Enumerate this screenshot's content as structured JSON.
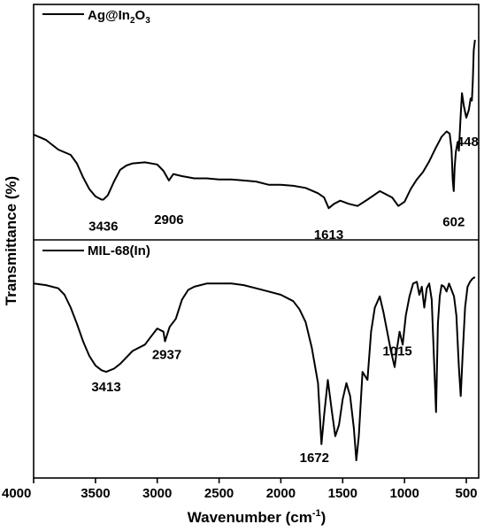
{
  "chart_data": {
    "type": "line",
    "xlabel": "Wavenumber (cm",
    "xlabel_sup": "-1",
    "xlabel_close": ")",
    "ylabel": "Transmittance (%)",
    "xlim": [
      4000,
      400
    ],
    "x_inverted": true,
    "xticks": [
      4000,
      3500,
      3000,
      2500,
      2000,
      1500,
      1000,
      500
    ],
    "yticks_shown": false,
    "grid": false,
    "legend_placement": "top-left",
    "panels": [
      {
        "position": "top",
        "legend": {
          "main": "Ag@In",
          "sub1": "2",
          "mid": "O",
          "sub2": "3"
        },
        "series": {
          "color": "#000000",
          "points": [
            [
              4000,
              61
            ],
            [
              3900,
              56
            ],
            [
              3800,
              47
            ],
            [
              3700,
              42
            ],
            [
              3650,
              34
            ],
            [
              3600,
              21
            ],
            [
              3550,
              10
            ],
            [
              3500,
              3
            ],
            [
              3450,
              0
            ],
            [
              3436,
              0
            ],
            [
              3400,
              4
            ],
            [
              3350,
              17
            ],
            [
              3300,
              28
            ],
            [
              3250,
              32
            ],
            [
              3200,
              34
            ],
            [
              3100,
              35
            ],
            [
              3000,
              33
            ],
            [
              2950,
              27
            ],
            [
              2906,
              18
            ],
            [
              2870,
              24
            ],
            [
              2800,
              22
            ],
            [
              2700,
              20
            ],
            [
              2600,
              20
            ],
            [
              2500,
              19
            ],
            [
              2400,
              19
            ],
            [
              2300,
              18
            ],
            [
              2200,
              17
            ],
            [
              2100,
              14
            ],
            [
              2000,
              14
            ],
            [
              1900,
              13
            ],
            [
              1800,
              11
            ],
            [
              1700,
              6
            ],
            [
              1650,
              2
            ],
            [
              1613,
              -8
            ],
            [
              1570,
              -4
            ],
            [
              1520,
              -1
            ],
            [
              1450,
              -4
            ],
            [
              1380,
              -6
            ],
            [
              1300,
              0
            ],
            [
              1200,
              8
            ],
            [
              1100,
              2
            ],
            [
              1050,
              -6
            ],
            [
              1000,
              -2
            ],
            [
              950,
              10
            ],
            [
              900,
              19
            ],
            [
              850,
              26
            ],
            [
              800,
              36
            ],
            [
              750,
              48
            ],
            [
              700,
              59
            ],
            [
              660,
              64
            ],
            [
              635,
              62
            ],
            [
              620,
              47
            ],
            [
              610,
              18
            ],
            [
              602,
              8
            ],
            [
              595,
              30
            ],
            [
              585,
              45
            ],
            [
              570,
              54
            ],
            [
              560,
              46
            ],
            [
              545,
              80
            ],
            [
              535,
              100
            ],
            [
              520,
              88
            ],
            [
              500,
              77
            ],
            [
              480,
              84
            ],
            [
              465,
              95
            ],
            [
              455,
              93
            ],
            [
              448,
              110
            ],
            [
              440,
              140
            ],
            [
              430,
              150
            ]
          ]
        },
        "annotations": [
          {
            "text": "3436",
            "x": 3436,
            "anchor_y": -14
          },
          {
            "text": "2906",
            "x": 2906,
            "anchor_y": -8
          },
          {
            "text": "1613",
            "x": 1613,
            "anchor_y": -22
          },
          {
            "text": "602",
            "x": 602,
            "anchor_y": -10
          },
          {
            "text": "448",
            "x": 448,
            "anchor_y": 52
          }
        ]
      },
      {
        "position": "bottom",
        "legend": {
          "main": "MIL-68(In)"
        },
        "series": {
          "color": "#000000",
          "points": [
            [
              4000,
              100
            ],
            [
              3900,
              99
            ],
            [
              3800,
              97
            ],
            [
              3750,
              93
            ],
            [
              3700,
              85
            ],
            [
              3650,
              75
            ],
            [
              3600,
              64
            ],
            [
              3550,
              55
            ],
            [
              3500,
              49
            ],
            [
              3450,
              46
            ],
            [
              3413,
              45
            ],
            [
              3350,
              47
            ],
            [
              3300,
              50
            ],
            [
              3250,
              54
            ],
            [
              3200,
              58
            ],
            [
              3100,
              62
            ],
            [
              3050,
              67
            ],
            [
              3000,
              72
            ],
            [
              2950,
              70
            ],
            [
              2937,
              64
            ],
            [
              2900,
              73
            ],
            [
              2850,
              78
            ],
            [
              2800,
              90
            ],
            [
              2750,
              96
            ],
            [
              2700,
              98
            ],
            [
              2600,
              100
            ],
            [
              2500,
              100
            ],
            [
              2400,
              100
            ],
            [
              2300,
              99
            ],
            [
              2200,
              97
            ],
            [
              2100,
              95
            ],
            [
              2000,
              93
            ],
            [
              1900,
              89
            ],
            [
              1850,
              84
            ],
            [
              1800,
              76
            ],
            [
              1750,
              60
            ],
            [
              1700,
              38
            ],
            [
              1672,
              0
            ],
            [
              1650,
              18
            ],
            [
              1620,
              40
            ],
            [
              1590,
              22
            ],
            [
              1560,
              5
            ],
            [
              1530,
              12
            ],
            [
              1500,
              28
            ],
            [
              1470,
              38
            ],
            [
              1440,
              30
            ],
            [
              1410,
              10
            ],
            [
              1390,
              -10
            ],
            [
              1370,
              5
            ],
            [
              1340,
              45
            ],
            [
              1300,
              40
            ],
            [
              1270,
              70
            ],
            [
              1240,
              85
            ],
            [
              1200,
              92
            ],
            [
              1170,
              82
            ],
            [
              1140,
              70
            ],
            [
              1110,
              58
            ],
            [
              1080,
              48
            ],
            [
              1060,
              60
            ],
            [
              1040,
              70
            ],
            [
              1015,
              62
            ],
            [
              990,
              80
            ],
            [
              960,
              92
            ],
            [
              930,
              100
            ],
            [
              900,
              101
            ],
            [
              880,
              93
            ],
            [
              860,
              98
            ],
            [
              840,
              85
            ],
            [
              820,
              97
            ],
            [
              800,
              100
            ],
            [
              780,
              90
            ],
            [
              760,
              50
            ],
            [
              745,
              20
            ],
            [
              730,
              75
            ],
            [
              715,
              92
            ],
            [
              700,
              99
            ],
            [
              680,
              98
            ],
            [
              660,
              95
            ],
            [
              640,
              100
            ],
            [
              620,
              96
            ],
            [
              600,
              92
            ],
            [
              580,
              80
            ],
            [
              560,
              48
            ],
            [
              545,
              30
            ],
            [
              530,
              55
            ],
            [
              510,
              85
            ],
            [
              490,
              98
            ],
            [
              470,
              101
            ],
            [
              450,
              103
            ],
            [
              430,
              104
            ]
          ]
        },
        "annotations": [
          {
            "text": "3413",
            "x": 3413,
            "anchor_y": 45
          },
          {
            "text": "2937",
            "x": 2937,
            "anchor_y": 64
          },
          {
            "text": "1672",
            "x": 1672,
            "anchor_y": 0
          },
          {
            "text": "1015",
            "x": 1015,
            "anchor_y": 62
          }
        ]
      }
    ]
  }
}
